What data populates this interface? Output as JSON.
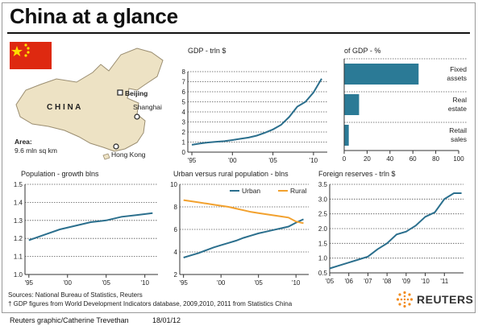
{
  "title": "China at a glance",
  "map": {
    "country": "C H I N A",
    "capital": "Beijing",
    "cities": [
      "Shanghai",
      "Hong Kong"
    ],
    "area_label": "Area:",
    "area_value": "9.6 mln sq km",
    "colors": {
      "land": "#ede2c4",
      "border": "#9a8d70",
      "flag_red": "#de2910",
      "flag_star": "#ffde00"
    }
  },
  "chart_data": [
    {
      "type": "line",
      "title": "GDP - trln $",
      "x": [
        1995,
        1996,
        1997,
        1998,
        1999,
        2000,
        2001,
        2002,
        2003,
        2004,
        2005,
        2006,
        2007,
        2008,
        2009,
        2010,
        2011
      ],
      "values": [
        0.73,
        0.86,
        0.96,
        1.03,
        1.09,
        1.2,
        1.33,
        1.45,
        1.64,
        1.93,
        2.26,
        2.71,
        3.49,
        4.52,
        4.99,
        5.93,
        7.3
      ],
      "xticks": [
        "'95",
        "'00",
        "'05",
        "'10"
      ],
      "yticks": [
        "0",
        "1",
        "2",
        "3",
        "4",
        "5",
        "6",
        "7",
        "8"
      ],
      "ylim": [
        0,
        8
      ],
      "color": "#2b6f8d"
    },
    {
      "type": "bar",
      "title": "of GDP - %",
      "categories": [
        "Fixed assets",
        "Real estate",
        "Retail sales"
      ],
      "category_lines": [
        [
          "Fixed",
          "assets"
        ],
        [
          "Real",
          "estate"
        ],
        [
          "Retail",
          "sales"
        ]
      ],
      "values": [
        65,
        13,
        4
      ],
      "xticks": [
        "0",
        "20",
        "40",
        "60",
        "80",
        "100"
      ],
      "xlim": [
        0,
        100
      ],
      "color": "#2b7a96"
    },
    {
      "type": "line",
      "title": "Population - growth blns",
      "x": [
        1995,
        1997,
        1999,
        2001,
        2003,
        2005,
        2007,
        2009,
        2011
      ],
      "values": [
        1.19,
        1.22,
        1.25,
        1.27,
        1.29,
        1.3,
        1.32,
        1.33,
        1.34
      ],
      "xticks": [
        "'95",
        "'00",
        "'05",
        "'10"
      ],
      "yticks": [
        "1.0",
        "1.1",
        "1.2",
        "1.3",
        "1.4",
        "1.5"
      ],
      "ylim": [
        1.0,
        1.5
      ],
      "color": "#2b6f8d"
    },
    {
      "type": "line",
      "title": "Urban versus rural population - blns",
      "x": [
        1995,
        1996,
        1997,
        1998,
        1999,
        2000,
        2001,
        2002,
        2003,
        2004,
        2005,
        2006,
        2007,
        2008,
        2009,
        2010,
        2011
      ],
      "series": [
        {
          "name": "Urban",
          "color": "#2b6f8d",
          "values": [
            3.5,
            3.7,
            3.9,
            4.15,
            4.4,
            4.6,
            4.8,
            5.0,
            5.25,
            5.45,
            5.65,
            5.8,
            5.95,
            6.1,
            6.25,
            6.6,
            6.9
          ]
        },
        {
          "name": "Rural",
          "color": "#f2a12e",
          "values": [
            8.6,
            8.5,
            8.4,
            8.3,
            8.2,
            8.1,
            8.0,
            7.85,
            7.7,
            7.55,
            7.45,
            7.35,
            7.25,
            7.15,
            7.05,
            6.7,
            6.55
          ]
        }
      ],
      "xticks": [
        "'95",
        "'00",
        "'05",
        "'10"
      ],
      "yticks": [
        "2",
        "4",
        "6",
        "8",
        "10"
      ],
      "ylim": [
        2,
        10
      ]
    },
    {
      "type": "line",
      "title": "Foreign reserves - trln $",
      "x": [
        2005,
        2005.5,
        2006,
        2006.5,
        2007,
        2007.5,
        2008,
        2008.5,
        2009,
        2009.5,
        2010,
        2010.5,
        2011,
        2011.5,
        2011.9
      ],
      "values": [
        0.65,
        0.75,
        0.85,
        0.95,
        1.05,
        1.3,
        1.5,
        1.8,
        1.9,
        2.1,
        2.4,
        2.55,
        3.0,
        3.2,
        3.2
      ],
      "xticks": [
        "'05",
        "'06",
        "'07",
        "'08",
        "'09",
        "'10",
        "'11"
      ],
      "yticks": [
        "0.5",
        "1.0",
        "1.5",
        "2.0",
        "2.5",
        "3.0",
        "3.5"
      ],
      "ylim": [
        0.5,
        3.5
      ],
      "color": "#2b6f8d"
    }
  ],
  "sources": {
    "line1": "Sources: National Bureau of Statistics, Reuters",
    "line2": "† GDP figures from World Development Indicators database, 2009,2010, 2011 from Statistics China"
  },
  "credit": "Reuters graphic/Catherine Trevethan",
  "date": "18/01/12",
  "logo_text": "REUTERS"
}
